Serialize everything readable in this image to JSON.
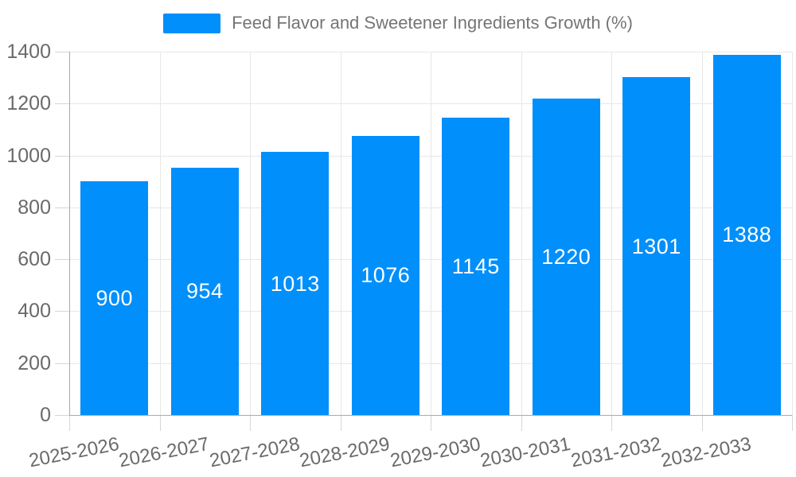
{
  "chart_data": {
    "type": "bar",
    "title": "Feed Flavor and Sweetener Ingredients Growth (%)",
    "categories": [
      "2025-2026",
      "2026-2027",
      "2027-2028",
      "2028-2029",
      "2029-2030",
      "2030-2031",
      "2031-2032",
      "2032-2033"
    ],
    "series": [
      {
        "name": "Feed Flavor and Sweetener Ingredients Growth (%)",
        "values": [
          900,
          954,
          1013,
          1076,
          1145,
          1220,
          1301,
          1388
        ]
      }
    ],
    "xlabel": "",
    "ylabel": "",
    "ylim": [
      0,
      1400
    ],
    "yticks": [
      0,
      200,
      400,
      600,
      800,
      1000,
      1200,
      1400
    ],
    "grid": "horizontal-and-vertical",
    "legend_position": "top",
    "bar_label_position": "inside-center",
    "x_label_rotation_deg": -11,
    "colors": {
      "bar": "#008FFB",
      "bar_label": "#ffffff",
      "axis_text": "#6a6a6a",
      "legend_text": "#757575",
      "grid_line": "#e7e7e7",
      "tick": "#d6d6d6",
      "axis_line": "#aaaaaa",
      "background": "#ffffff"
    }
  }
}
